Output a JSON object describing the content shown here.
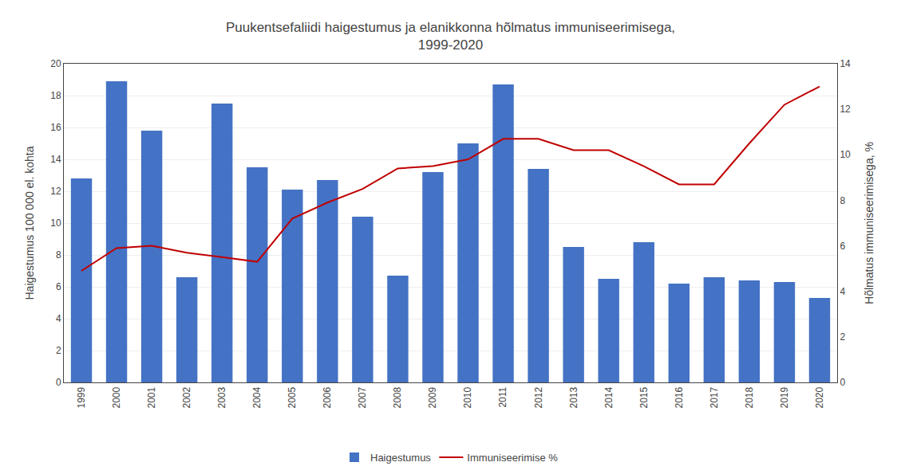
{
  "chart_data": {
    "type": "bar",
    "title": "Puukentsefaliidi haigestumus ja elanikkonna hõlmatus immuniseerimisega,\n1999-2020",
    "categories": [
      1999,
      2000,
      2001,
      2002,
      2003,
      2004,
      2005,
      2006,
      2007,
      2008,
      2009,
      2010,
      2011,
      2012,
      2013,
      2014,
      2015,
      2016,
      2017,
      2018,
      2019,
      2020
    ],
    "series": [
      {
        "name": "Haigestumus",
        "type": "bar",
        "color": "#4472C4",
        "values": [
          12.8,
          18.9,
          15.8,
          6.6,
          17.5,
          13.5,
          12.1,
          12.7,
          10.4,
          6.7,
          13.2,
          15.0,
          18.7,
          13.4,
          8.5,
          6.5,
          8.8,
          6.2,
          6.6,
          6.4,
          6.3,
          5.3
        ]
      },
      {
        "name": "Immuniseerimise %",
        "type": "line",
        "color": "#C00000",
        "axis": "y2",
        "values": [
          4.9,
          5.9,
          6.0,
          5.7,
          5.5,
          5.3,
          7.2,
          7.9,
          8.5,
          9.4,
          9.5,
          9.8,
          10.7,
          10.7,
          10.2,
          10.2,
          9.5,
          8.7,
          8.7,
          10.5,
          12.2,
          13.0
        ]
      }
    ],
    "ylabel": "Haigestumus 100 000 el. kohta",
    "y2label": "Hõlmatus immuniseerimisega, %",
    "ylim": [
      0,
      20
    ],
    "yticks": [
      0,
      2,
      4,
      6,
      8,
      10,
      12,
      14,
      16,
      18,
      20
    ],
    "y2lim": [
      0,
      14
    ],
    "y2ticks": [
      0,
      2,
      4,
      6,
      8,
      10,
      12,
      14
    ],
    "grid": true,
    "legend": "bottom"
  }
}
